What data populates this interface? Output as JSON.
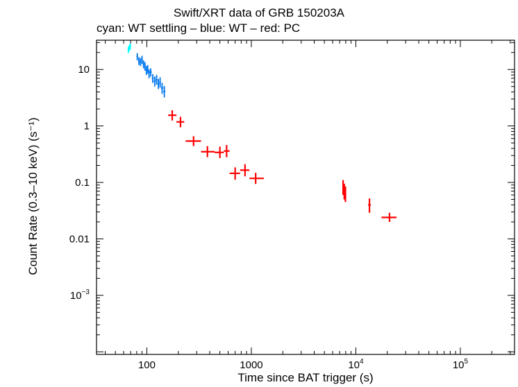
{
  "title": "Swift/XRT data of GRB 150203A",
  "subtitle": "cyan: WT settling – blue: WT – red: PC",
  "chart_data": {
    "type": "scatter",
    "title": "Swift/XRT data of GRB 150203A",
    "subtitle": "cyan: WT settling – blue: WT – red: PC",
    "xlabel": "Time since BAT trigger (s)",
    "ylabel": "Count Rate (0.3–10 keV) (s⁻¹)",
    "xscale": "log",
    "yscale": "log",
    "xlim": [
      33,
      330000
    ],
    "ylim": [
      9e-05,
      33
    ],
    "x_ticks": [
      {
        "value": 100,
        "label": "100"
      },
      {
        "value": 1000,
        "label": "1000"
      },
      {
        "value": 10000,
        "label": "10",
        "sup": "4"
      },
      {
        "value": 100000,
        "label": "10",
        "sup": "5"
      }
    ],
    "y_ticks": [
      {
        "value": 0.001,
        "label": "10",
        "sup": "−3"
      },
      {
        "value": 0.01,
        "label": "0.01"
      },
      {
        "value": 0.1,
        "label": "0.1"
      },
      {
        "value": 1,
        "label": "1"
      },
      {
        "value": 10,
        "label": "10"
      }
    ],
    "series": [
      {
        "name": "WT settling",
        "color": "#00ffff",
        "points": [
          {
            "x": 66.5,
            "y": 22,
            "xlo": 66,
            "xhi": 67,
            "ylo": 19.5,
            "yhi": 25
          },
          {
            "x": 67.5,
            "y": 23.5,
            "xlo": 67,
            "xhi": 68,
            "ylo": 21,
            "yhi": 26.5
          },
          {
            "x": 68.5,
            "y": 24.5,
            "xlo": 68,
            "xhi": 69,
            "ylo": 22,
            "yhi": 27.5
          },
          {
            "x": 69.5,
            "y": 26,
            "xlo": 69,
            "xhi": 70,
            "ylo": 23,
            "yhi": 29
          }
        ]
      },
      {
        "name": "WT",
        "color": "#0077ee",
        "points": [
          {
            "x": 81,
            "y": 17,
            "xlo": 79.5,
            "xhi": 82.5,
            "ylo": 14.5,
            "yhi": 19.5
          },
          {
            "x": 84,
            "y": 14,
            "xlo": 82.5,
            "xhi": 85.5,
            "ylo": 12,
            "yhi": 16.5
          },
          {
            "x": 87,
            "y": 13.5,
            "xlo": 85.5,
            "xhi": 88.5,
            "ylo": 11.5,
            "yhi": 16
          },
          {
            "x": 90,
            "y": 15,
            "xlo": 88.5,
            "xhi": 91.5,
            "ylo": 12.5,
            "yhi": 17.5
          },
          {
            "x": 93,
            "y": 12.5,
            "xlo": 91.5,
            "xhi": 94.5,
            "ylo": 10.5,
            "yhi": 14.5
          },
          {
            "x": 96,
            "y": 11.5,
            "xlo": 94.5,
            "xhi": 97.5,
            "ylo": 9.5,
            "yhi": 13.5
          },
          {
            "x": 99,
            "y": 9.5,
            "xlo": 97.5,
            "xhi": 100.5,
            "ylo": 8,
            "yhi": 11.5
          },
          {
            "x": 102,
            "y": 10,
            "xlo": 100.5,
            "xhi": 103.5,
            "ylo": 8.5,
            "yhi": 12
          },
          {
            "x": 105,
            "y": 8.5,
            "xlo": 103.5,
            "xhi": 106.5,
            "ylo": 7,
            "yhi": 10
          },
          {
            "x": 109,
            "y": 9,
            "xlo": 106.5,
            "xhi": 111.5,
            "ylo": 7.5,
            "yhi": 10.5
          },
          {
            "x": 114,
            "y": 7,
            "xlo": 111.5,
            "xhi": 116.5,
            "ylo": 5.8,
            "yhi": 8.3
          },
          {
            "x": 119,
            "y": 6.2,
            "xlo": 116.5,
            "xhi": 121.5,
            "ylo": 5,
            "yhi": 7.5
          },
          {
            "x": 124,
            "y": 6.6,
            "xlo": 121.5,
            "xhi": 126.5,
            "ylo": 5.4,
            "yhi": 8
          },
          {
            "x": 129,
            "y": 5.6,
            "xlo": 126.5,
            "xhi": 131.5,
            "ylo": 4.5,
            "yhi": 6.8
          },
          {
            "x": 134,
            "y": 6,
            "xlo": 131.5,
            "xhi": 136.5,
            "ylo": 4.8,
            "yhi": 7.3
          },
          {
            "x": 140,
            "y": 4.7,
            "xlo": 136.5,
            "xhi": 143.5,
            "ylo": 3.7,
            "yhi": 5.8
          },
          {
            "x": 147,
            "y": 4.1,
            "xlo": 143.5,
            "xhi": 150.5,
            "ylo": 3.2,
            "yhi": 5.1
          }
        ]
      },
      {
        "name": "PC",
        "color": "#ff0000",
        "points": [
          {
            "x": 175,
            "y": 1.55,
            "xlo": 160,
            "xhi": 192,
            "ylo": 1.25,
            "yhi": 1.9
          },
          {
            "x": 210,
            "y": 1.18,
            "xlo": 192,
            "xhi": 228,
            "ylo": 0.95,
            "yhi": 1.45
          },
          {
            "x": 280,
            "y": 0.54,
            "xlo": 235,
            "xhi": 330,
            "ylo": 0.44,
            "yhi": 0.66
          },
          {
            "x": 380,
            "y": 0.35,
            "xlo": 330,
            "xhi": 445,
            "ylo": 0.28,
            "yhi": 0.44
          },
          {
            "x": 500,
            "y": 0.34,
            "xlo": 445,
            "xhi": 545,
            "ylo": 0.27,
            "yhi": 0.43
          },
          {
            "x": 580,
            "y": 0.36,
            "xlo": 545,
            "xhi": 620,
            "ylo": 0.28,
            "yhi": 0.46
          },
          {
            "x": 700,
            "y": 0.145,
            "xlo": 620,
            "xhi": 780,
            "ylo": 0.112,
            "yhi": 0.185
          },
          {
            "x": 870,
            "y": 0.165,
            "xlo": 780,
            "xhi": 960,
            "ylo": 0.128,
            "yhi": 0.21
          },
          {
            "x": 1100,
            "y": 0.118,
            "xlo": 960,
            "xhi": 1320,
            "ylo": 0.094,
            "yhi": 0.148
          },
          {
            "x": 7550,
            "y": 0.085,
            "xlo": 7450,
            "xhi": 7650,
            "ylo": 0.06,
            "yhi": 0.11
          },
          {
            "x": 7750,
            "y": 0.072,
            "xlo": 7650,
            "xhi": 7850,
            "ylo": 0.05,
            "yhi": 0.095
          },
          {
            "x": 7950,
            "y": 0.065,
            "xlo": 7850,
            "xhi": 8050,
            "ylo": 0.045,
            "yhi": 0.085
          },
          {
            "x": 13500,
            "y": 0.04,
            "xlo": 13100,
            "xhi": 13900,
            "ylo": 0.029,
            "yhi": 0.052
          },
          {
            "x": 21000,
            "y": 0.024,
            "xlo": 17600,
            "xhi": 24500,
            "ylo": 0.02,
            "yhi": 0.029
          }
        ]
      }
    ]
  }
}
